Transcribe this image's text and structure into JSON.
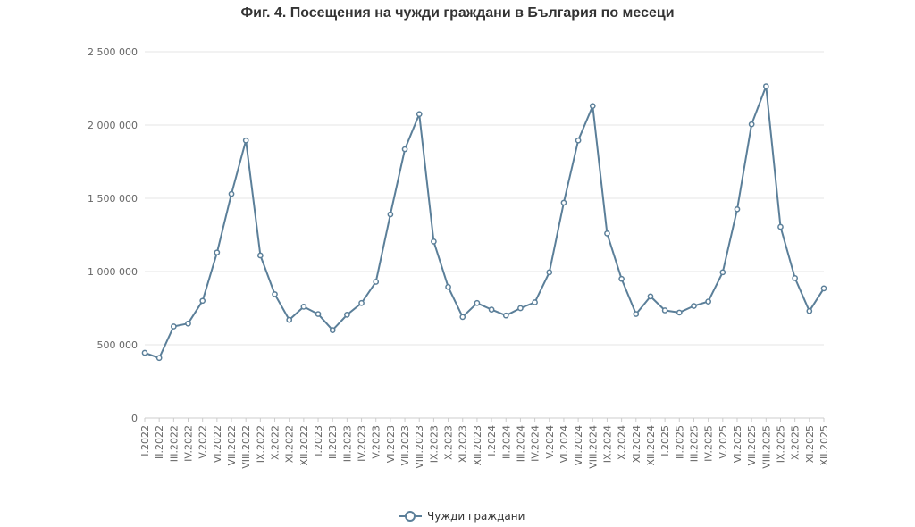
{
  "title": "Фиг. 4. Посещения на чужди граждани в България по месеци",
  "chart_data": {
    "type": "line",
    "title": "Фиг. 4. Посещения на чужди граждани в България по месеци",
    "xlabel": "",
    "ylabel": "",
    "ylim": [
      0,
      2500000
    ],
    "yticks": [
      0,
      500000,
      1000000,
      1500000,
      2000000,
      2500000
    ],
    "ytick_labels": [
      "0",
      "500 000",
      "1 000 000",
      "1 500 000",
      "2 000 000",
      "2 500 000"
    ],
    "grid": true,
    "legend_position": "bottom",
    "categories": [
      "I.2022",
      "II.2022",
      "III.2022",
      "IV.2022",
      "V.2022",
      "VI.2022",
      "VII.2022",
      "VIII.2022",
      "IX.2022",
      "X.2022",
      "XI.2022",
      "XII.2022",
      "I.2023",
      "II.2023",
      "III.2023",
      "IV.2023",
      "V.2023",
      "VI.2023",
      "VII.2023",
      "VIII.2023",
      "IX.2023",
      "X.2023",
      "XI.2023",
      "XII.2023",
      "I.2024",
      "II.2024",
      "III.2024",
      "IV.2024",
      "V.2024",
      "VI.2024",
      "VII.2024",
      "VIII.2024",
      "IX.2024",
      "X.2024",
      "XI.2024",
      "XII.2024",
      "I.2025",
      "II.2025",
      "III.2025",
      "IV.2025",
      "V.2025",
      "VI.2025",
      "VII.2025",
      "VIII.2025",
      "IX.2025",
      "X.2025",
      "XI.2025",
      "XII.2025"
    ],
    "series": [
      {
        "name": "Чужди граждани",
        "color": "#5b7f99",
        "values": [
          445000,
          410000,
          625000,
          645000,
          800000,
          1130000,
          1530000,
          1895000,
          1110000,
          845000,
          670000,
          760000,
          710000,
          600000,
          705000,
          785000,
          930000,
          1390000,
          1835000,
          2075000,
          1205000,
          895000,
          690000,
          785000,
          740000,
          700000,
          750000,
          790000,
          995000,
          1470000,
          1895000,
          2130000,
          1260000,
          950000,
          710000,
          830000,
          735000,
          720000,
          765000,
          795000,
          995000,
          1425000,
          2005000,
          2265000,
          1305000,
          955000,
          730000,
          885000
        ]
      }
    ]
  }
}
